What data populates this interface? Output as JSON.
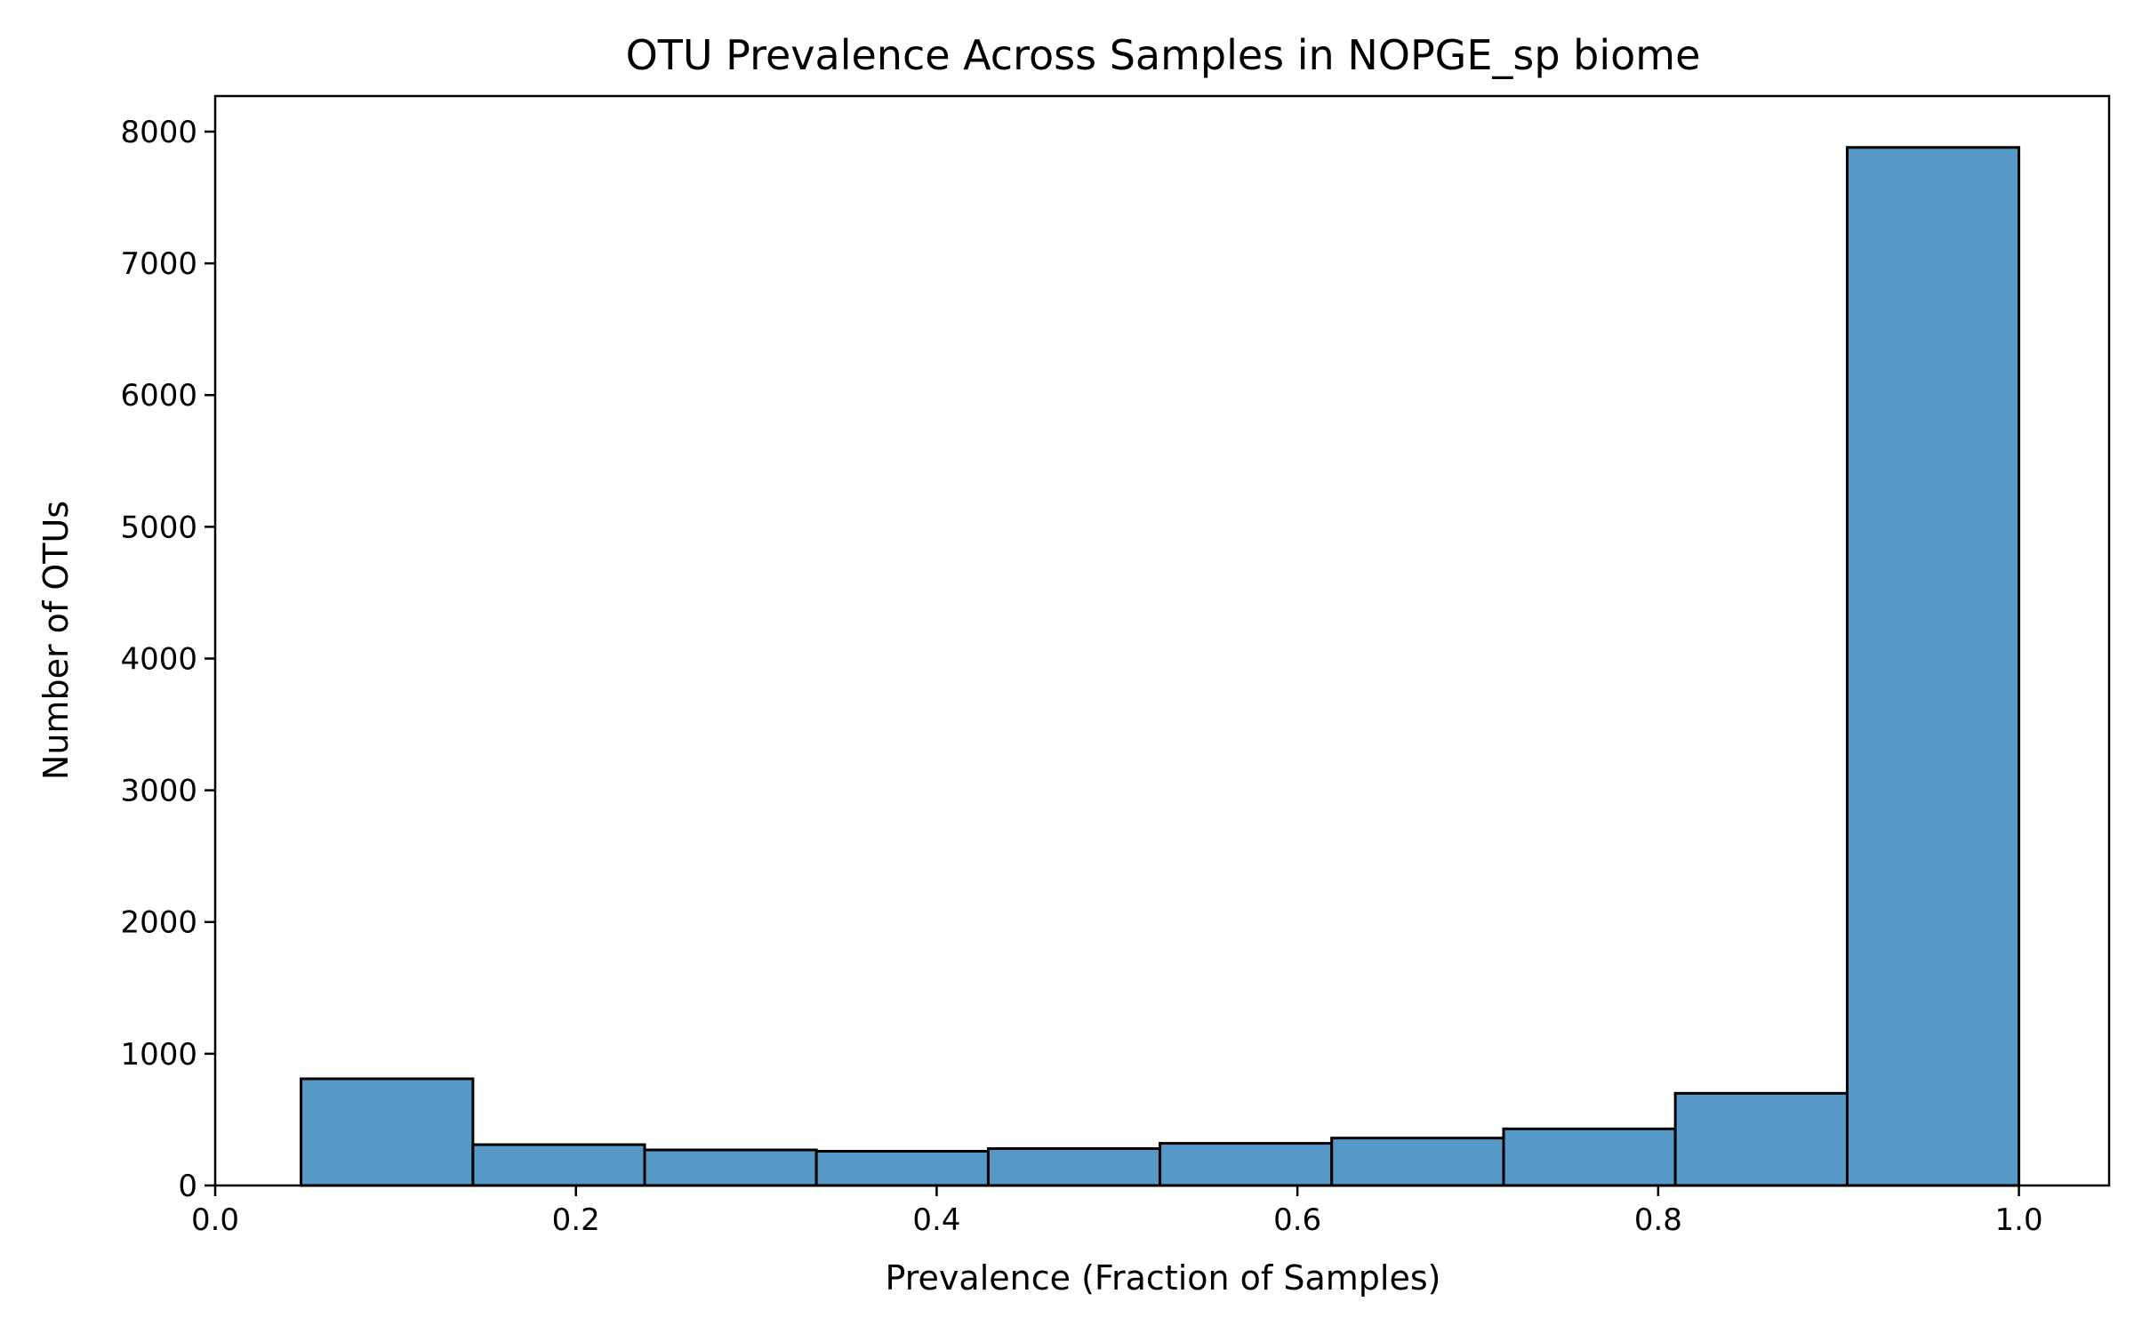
{
  "chart_data": {
    "type": "bar",
    "title": "OTU Prevalence Across Samples in NOPGE_sp biome",
    "xlabel": "Prevalence (Fraction of Samples)",
    "ylabel": "Number of OTUs",
    "xlim": [
      0.0,
      1.05
    ],
    "ylim": [
      0,
      8270
    ],
    "x_ticks": [
      {
        "value": 0.0,
        "label": "0.0"
      },
      {
        "value": 0.2,
        "label": "0.2"
      },
      {
        "value": 0.4,
        "label": "0.4"
      },
      {
        "value": 0.6,
        "label": "0.6"
      },
      {
        "value": 0.8,
        "label": "0.8"
      },
      {
        "value": 1.0,
        "label": "1.0"
      }
    ],
    "y_ticks": [
      {
        "value": 0,
        "label": "0"
      },
      {
        "value": 1000,
        "label": "1000"
      },
      {
        "value": 2000,
        "label": "2000"
      },
      {
        "value": 3000,
        "label": "3000"
      },
      {
        "value": 4000,
        "label": "4000"
      },
      {
        "value": 5000,
        "label": "5000"
      },
      {
        "value": 6000,
        "label": "6000"
      },
      {
        "value": 7000,
        "label": "7000"
      },
      {
        "value": 8000,
        "label": "8000"
      }
    ],
    "bins": [
      {
        "x0": 0.0476,
        "x1": 0.1429,
        "count": 810
      },
      {
        "x0": 0.1429,
        "x1": 0.2381,
        "count": 310
      },
      {
        "x0": 0.2381,
        "x1": 0.3333,
        "count": 270
      },
      {
        "x0": 0.3333,
        "x1": 0.4286,
        "count": 260
      },
      {
        "x0": 0.4286,
        "x1": 0.5238,
        "count": 280
      },
      {
        "x0": 0.5238,
        "x1": 0.619,
        "count": 320
      },
      {
        "x0": 0.619,
        "x1": 0.7143,
        "count": 360
      },
      {
        "x0": 0.7143,
        "x1": 0.8095,
        "count": 430
      },
      {
        "x0": 0.8095,
        "x1": 0.9048,
        "count": 700
      },
      {
        "x0": 0.9048,
        "x1": 1.0,
        "count": 7880
      }
    ],
    "bar_color": "#5799c6",
    "edge_color": "#000000",
    "grid": false,
    "legend": "none"
  }
}
